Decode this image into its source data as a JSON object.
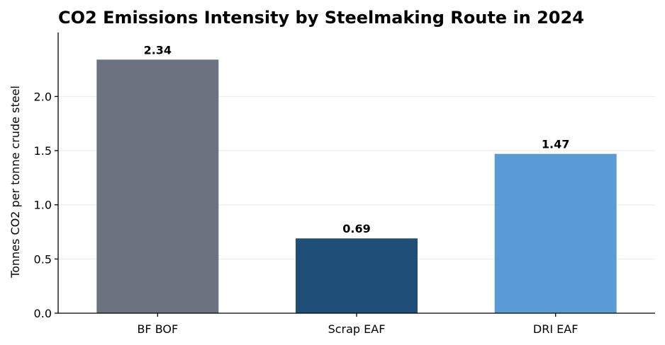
{
  "chart_data": {
    "type": "bar",
    "title": "CO2 Emissions Intensity by Steelmaking Route in 2024",
    "xlabel": "",
    "ylabel": "Tonnes CO2 per tonne crude steel",
    "categories": [
      "BF BOF",
      "Scrap EAF",
      "DRI EAF"
    ],
    "values": [
      2.34,
      0.69,
      1.47
    ],
    "value_labels": [
      "2.34",
      "0.69",
      "1.47"
    ],
    "colors": [
      "#6b7380",
      "#1f4e79",
      "#5b9bd5"
    ],
    "ylim": [
      0,
      2.59
    ],
    "yticks": [
      0.0,
      0.5,
      1.0,
      1.5,
      2.0
    ],
    "ytick_labels": [
      "0.0",
      "0.5",
      "1.0",
      "1.5",
      "2.0"
    ],
    "grid": "horizontal",
    "legend": "none"
  }
}
